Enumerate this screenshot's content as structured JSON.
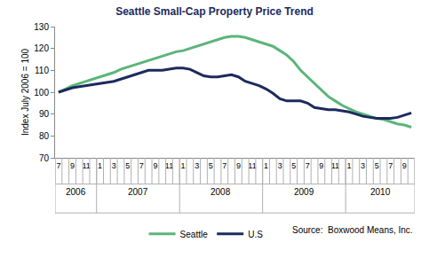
{
  "chart_data": {
    "type": "line",
    "title": "Seattle Small-Cap Property Price Trend",
    "y_label": "Index July 2006 = 100",
    "source": "Source:  Boxwood Means, Inc.",
    "categories": [
      "7",
      null,
      "9",
      null,
      "11",
      null,
      "1",
      null,
      "3",
      null,
      "5",
      null,
      "7",
      null,
      "9",
      null,
      "11",
      null,
      "1",
      null,
      "3",
      null,
      "5",
      null,
      "7",
      null,
      "9",
      null,
      "11",
      null,
      "1",
      null,
      "3",
      null,
      "5",
      null,
      "7",
      null,
      "9",
      null,
      "11",
      null,
      "1",
      null,
      "3",
      null,
      "5",
      null,
      "7",
      null,
      "9",
      null
    ],
    "category_groups": [
      {
        "label": "2006",
        "first": 0,
        "last": 5
      },
      {
        "label": "2007",
        "first": 6,
        "last": 17
      },
      {
        "label": "2008",
        "first": 18,
        "last": 29
      },
      {
        "label": "2009",
        "first": 30,
        "last": 41
      },
      {
        "label": "2010",
        "first": 42,
        "last": 51
      }
    ],
    "series": [
      {
        "name": "Seattle",
        "color": "#5bb57a",
        "line_style": "solid",
        "values": [
          100,
          101.5,
          103,
          104,
          105,
          106,
          107,
          108,
          109,
          110.5,
          111.5,
          112.5,
          113.5,
          114.5,
          115.5,
          116.5,
          117.5,
          118.5,
          119,
          120,
          121,
          122,
          123,
          124,
          125,
          125.5,
          125.5,
          125,
          124,
          123,
          122,
          121,
          119,
          117,
          114,
          110,
          107,
          104,
          101,
          98,
          96,
          94,
          92.5,
          91,
          90,
          89,
          88,
          87.5,
          86.5,
          85.5,
          85,
          84
        ]
      },
      {
        "name": "U.S",
        "color": "#1c2a5e",
        "line_style": "solid",
        "values": [
          100,
          101,
          102,
          102.5,
          103,
          103.5,
          104,
          104.5,
          105,
          106,
          107,
          108,
          109,
          110,
          110,
          110,
          110.5,
          111,
          111,
          110.5,
          109,
          107.5,
          107,
          107,
          107.5,
          108,
          107,
          105,
          104,
          103,
          101.5,
          99.5,
          97,
          96,
          96,
          96,
          95,
          93,
          92.5,
          92,
          92,
          91.5,
          91,
          90,
          89,
          88.5,
          88,
          88,
          88,
          88.5,
          89.5,
          90.5
        ]
      }
    ],
    "ylim": [
      70,
      130
    ],
    "yticks": [
      70,
      80,
      90,
      100,
      110,
      120,
      130
    ],
    "grid": false,
    "legend": "bottom"
  }
}
